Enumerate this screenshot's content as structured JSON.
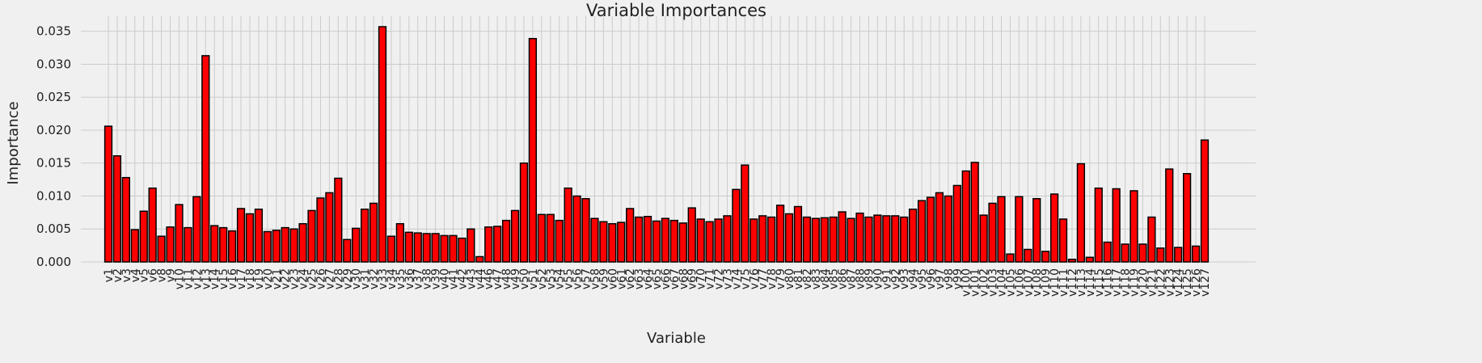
{
  "chart_data": {
    "type": "bar",
    "title": "Variable Importances",
    "xlabel": "Variable",
    "ylabel": "Importance",
    "ylim": [
      0,
      0.0373
    ],
    "yticks": [
      0.0,
      0.005,
      0.01,
      0.015,
      0.02,
      0.025,
      0.03,
      0.035
    ],
    "ytick_labels": [
      "0.000",
      "0.005",
      "0.010",
      "0.015",
      "0.020",
      "0.025",
      "0.030",
      "0.035"
    ],
    "grid": true,
    "bar_color": "#ff0000",
    "edge_color": "#000000",
    "background": "#f0f0f0",
    "categories": [
      "v1",
      "v2",
      "v3",
      "v4",
      "v5",
      "v6",
      "v8",
      "v9",
      "v10",
      "v11",
      "v12",
      "v13",
      "v14",
      "v15",
      "v16",
      "v17",
      "v18",
      "v19",
      "v20",
      "v21",
      "v22",
      "v23",
      "v24",
      "v25",
      "v26",
      "v27",
      "v28",
      "v29",
      "v30",
      "v31",
      "v32",
      "v33",
      "v34",
      "v35",
      "v36",
      "v37",
      "v38",
      "v39",
      "v40",
      "v41",
      "v42",
      "v43",
      "v44",
      "v46",
      "v47",
      "v48",
      "v49",
      "v50",
      "v51",
      "v52",
      "v53",
      "v54",
      "v55",
      "v56",
      "v57",
      "v58",
      "v59",
      "v60",
      "v61",
      "v62",
      "v63",
      "v64",
      "v65",
      "v66",
      "v67",
      "v68",
      "v69",
      "v70",
      "v71",
      "v72",
      "v73",
      "v74",
      "v75",
      "v76",
      "v77",
      "v78",
      "v79",
      "v80",
      "v81",
      "v82",
      "v83",
      "v84",
      "v85",
      "v86",
      "v87",
      "v88",
      "v89",
      "v90",
      "v91",
      "v92",
      "v93",
      "v94",
      "v95",
      "v96",
      "v97",
      "v98",
      "v99",
      "v100",
      "v101",
      "v102",
      "v103",
      "v104",
      "v105",
      "v106",
      "v107",
      "v108",
      "v109",
      "v110",
      "v111",
      "v112",
      "v113",
      "v114",
      "v115",
      "v116",
      "v117",
      "v118",
      "v119",
      "v120",
      "v121",
      "v122",
      "v123",
      "v124",
      "v125",
      "v126",
      "v127"
    ],
    "values": [
      0.0206,
      0.0161,
      0.0128,
      0.0049,
      0.0077,
      0.0112,
      0.0039,
      0.0053,
      0.0087,
      0.0052,
      0.0099,
      0.0313,
      0.0055,
      0.0052,
      0.0047,
      0.0081,
      0.0073,
      0.008,
      0.0046,
      0.0048,
      0.0052,
      0.005,
      0.0058,
      0.0078,
      0.0097,
      0.0105,
      0.0127,
      0.0034,
      0.0051,
      0.008,
      0.0089,
      0.0357,
      0.0039,
      0.0058,
      0.0045,
      0.0044,
      0.0043,
      0.0043,
      0.004,
      0.004,
      0.0036,
      0.005,
      0.0008,
      0.0053,
      0.0054,
      0.0063,
      0.0078,
      0.015,
      0.0339,
      0.0072,
      0.0072,
      0.0063,
      0.0112,
      0.01,
      0.0096,
      0.0066,
      0.0061,
      0.0058,
      0.006,
      0.0081,
      0.0068,
      0.0069,
      0.0062,
      0.0066,
      0.0063,
      0.0059,
      0.0082,
      0.0065,
      0.0061,
      0.0065,
      0.007,
      0.011,
      0.0147,
      0.0065,
      0.007,
      0.0068,
      0.0086,
      0.0073,
      0.0084,
      0.0068,
      0.0066,
      0.0067,
      0.0068,
      0.0076,
      0.0066,
      0.0074,
      0.0068,
      0.0071,
      0.007,
      0.007,
      0.0068,
      0.008,
      0.0093,
      0.0098,
      0.0105,
      0.01,
      0.0116,
      0.0138,
      0.0151,
      0.0071,
      0.0089,
      0.0099,
      0.0012,
      0.0099,
      0.0019,
      0.0096,
      0.0016,
      0.0103,
      0.0065,
      0.0004,
      0.0149,
      0.0007,
      0.0112,
      0.003,
      0.0111,
      0.0027,
      0.0108,
      0.0027,
      0.0068,
      0.0021,
      0.0141,
      0.0022,
      0.0134,
      0.0024,
      0.0185
    ]
  }
}
